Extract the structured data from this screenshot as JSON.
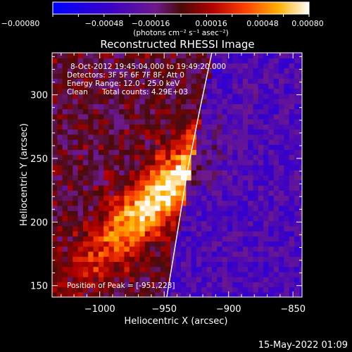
{
  "chart_data": {
    "type": "heatmap",
    "title": "Reconstructed RHESSI Image",
    "xlabel": "Heliocentric X (arcsec)",
    "ylabel": "Heliocentric Y (arcsec)",
    "xlim": [
      -1037,
      -843
    ],
    "ylim": [
      141,
      333
    ],
    "xticks": [
      -1000,
      -950,
      -900,
      -850
    ],
    "yticks": [
      150,
      200,
      250,
      300
    ],
    "xtick_labels": [
      "−1000",
      "−950",
      "−900",
      "−850"
    ],
    "ytick_labels": [
      "150",
      "200",
      "250",
      "300"
    ],
    "colorbar": {
      "min": -0.0008,
      "max": 0.0008,
      "tick_labels": [
        "−0.00080",
        "−0.00048",
        "−0.00016",
        "0.00016",
        "0.00048",
        "0.00080"
      ],
      "unit_label": "(photons cm⁻² s⁻¹ asec⁻²)"
    },
    "annotations": {
      "time_range": "8-Oct-2012 19:45:04.000 to 19:49:20.000",
      "detectors": "Detectors: 3F 5F 6F 7F 8F, Att 0",
      "energy": "Energy Range: 12.0 - 25.0 keV",
      "method": "Clean",
      "total_counts": "Total counts: 4.29E+03",
      "peak": "Position of Peak = [-951,223]"
    },
    "peak": {
      "x": -951,
      "y": 223
    },
    "limb_curve": [
      [
        -948,
        141
      ],
      [
        -940,
        190
      ],
      [
        -932,
        240
      ],
      [
        -922,
        290
      ],
      [
        -913,
        333
      ]
    ]
  },
  "footer": {
    "date": "15-May-2022 01:09"
  },
  "colors": {
    "background": "#000000",
    "axes": "#ffffff",
    "limb": "#ffffff"
  }
}
